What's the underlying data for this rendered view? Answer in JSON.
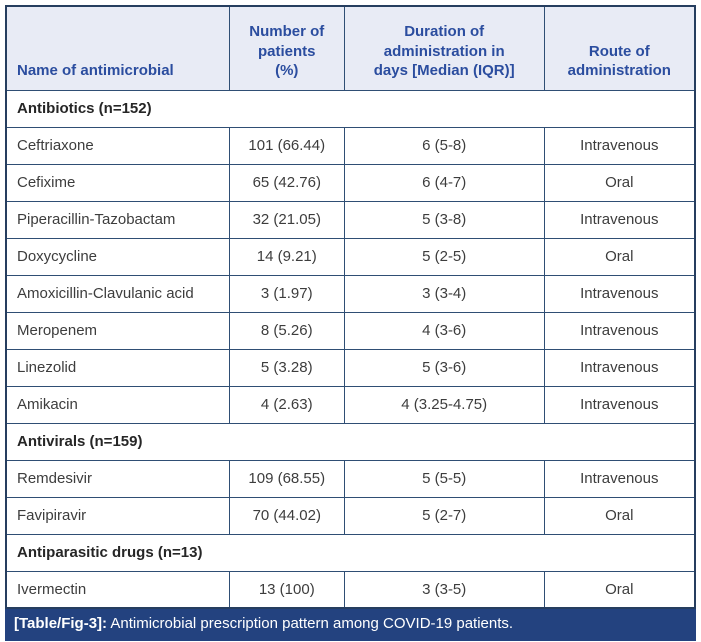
{
  "accent_colors": {
    "header_bg": "#e8ebf5",
    "header_text": "#2b4d9f",
    "border": "#2f4e74",
    "caption_bg": "#23427f",
    "caption_text": "#ffffff"
  },
  "table": {
    "columns": [
      "Name of antimicrobial",
      "Number of\npatients\n(%)",
      "Duration of\nadministration in\ndays [Median (IQR)]",
      "Route of\nadministration"
    ],
    "rows": [
      {
        "type": "section",
        "label": "Antibiotics (n=152)"
      },
      {
        "type": "data",
        "name": "Ceftriaxone",
        "patients": "101 (66.44)",
        "duration": "6 (5-8)",
        "route": "Intravenous"
      },
      {
        "type": "data",
        "name": "Cefixime",
        "patients": "65 (42.76)",
        "duration": "6 (4-7)",
        "route": "Oral"
      },
      {
        "type": "data",
        "name": "Piperacillin-Tazobactam",
        "patients": "32 (21.05)",
        "duration": "5 (3-8)",
        "route": "Intravenous"
      },
      {
        "type": "data",
        "name": "Doxycycline",
        "patients": "14 (9.21)",
        "duration": "5 (2-5)",
        "route": "Oral"
      },
      {
        "type": "data",
        "name": "Amoxicillin-Clavulanic acid",
        "patients": "3 (1.97)",
        "duration": "3 (3-4)",
        "route": "Intravenous"
      },
      {
        "type": "data",
        "name": "Meropenem",
        "patients": "8 (5.26)",
        "duration": "4 (3-6)",
        "route": "Intravenous"
      },
      {
        "type": "data",
        "name": "Linezolid",
        "patients": "5 (3.28)",
        "duration": "5 (3-6)",
        "route": "Intravenous"
      },
      {
        "type": "data",
        "name": "Amikacin",
        "patients": "4 (2.63)",
        "duration": "4 (3.25-4.75)",
        "route": "Intravenous"
      },
      {
        "type": "section",
        "label": "Antivirals (n=159)"
      },
      {
        "type": "data",
        "name": "Remdesivir",
        "patients": "109 (68.55)",
        "duration": "5 (5-5)",
        "route": "Intravenous"
      },
      {
        "type": "data",
        "name": "Favipiravir",
        "patients": "70 (44.02)",
        "duration": "5 (2-7)",
        "route": "Oral"
      },
      {
        "type": "section",
        "label": "Antiparasitic drugs (n=13)"
      },
      {
        "type": "data",
        "name": "Ivermectin",
        "patients": "13 (100)",
        "duration": "3 (3-5)",
        "route": "Oral"
      }
    ]
  },
  "caption": {
    "tag": "[Table/Fig-3]:",
    "text": " Antimicrobial prescription pattern among COVID-19 patients."
  }
}
